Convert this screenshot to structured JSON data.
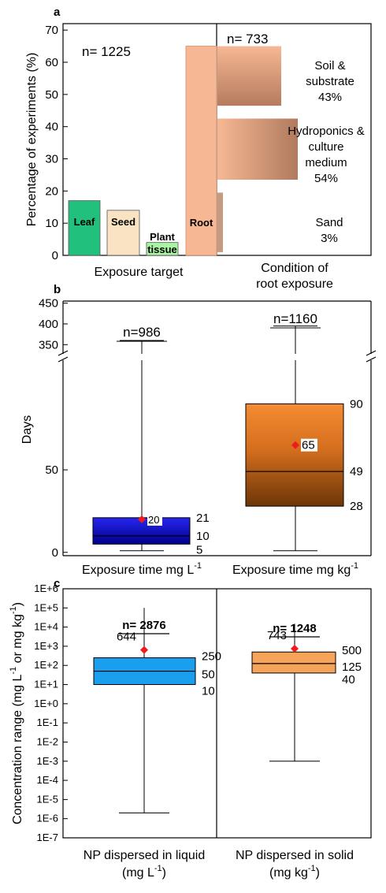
{
  "chart_data": [
    {
      "panel": "a",
      "type": "bar",
      "ylabel": "Percentage of experiments (%)",
      "ylim": [
        0,
        72
      ],
      "yticks": [
        0,
        10,
        20,
        30,
        40,
        50,
        60,
        70
      ],
      "left": {
        "n_label": "n= 1225",
        "xlabel": "Exposure target",
        "categories": [
          "Leaf",
          "Seed",
          "Plant tissue",
          "Root"
        ],
        "label_lines": [
          [
            "Leaf"
          ],
          [
            "Seed"
          ],
          [
            "Plant",
            "tissue"
          ],
          [
            "Root"
          ]
        ],
        "values": [
          17,
          14,
          4,
          65
        ],
        "colors": [
          "#21c07c",
          "#fae3c2",
          "#aaf5a3",
          "#f6b894"
        ]
      },
      "right": {
        "n_label": "n= 733",
        "xlabel_lines": [
          "Condition of",
          "root exposure"
        ],
        "categories": [
          "Soil & substrate",
          "Hydroponics & culture medium",
          "Sand"
        ],
        "percent_labels": [
          "43%",
          "54%",
          "3%"
        ],
        "label_lines": [
          [
            "Soil &",
            "substrate",
            "43%"
          ],
          [
            "Hydroponics &",
            "culture",
            "medium",
            "54%"
          ],
          [
            "Sand",
            "3%"
          ]
        ],
        "spans": [
          [
            46.5,
            65
          ],
          [
            23.5,
            42.5
          ],
          [
            1,
            19.5
          ]
        ],
        "percent_values": [
          43,
          54,
          3
        ]
      }
    },
    {
      "panel": "b",
      "type": "box",
      "ylabel": "Days",
      "lower_ylim": [
        -2,
        115
      ],
      "lower_yticks": [
        0,
        50
      ],
      "upper_ylim": [
        322,
        455
      ],
      "upper_yticks": [
        350,
        400,
        450
      ],
      "categories": [
        "Exposure time  mg L",
        "Exposure time  mg kg"
      ],
      "unit_superscript": "-1",
      "boxes": [
        {
          "n_label": "n=986",
          "min": 1,
          "q1": 5,
          "median": 10,
          "q3": 21,
          "max": 360,
          "mean": 20,
          "labels": {
            "q3": "21",
            "median": "10",
            "q1": "5",
            "mean": "20"
          },
          "color_top": "#2626f0",
          "color_bottom": "#00008a"
        },
        {
          "n_label": "n=1160",
          "min": 1,
          "q1": 28,
          "median": 49,
          "q3": 90,
          "max": 395,
          "mean": 65,
          "labels": {
            "q3": "90",
            "median": "49",
            "q1": "28",
            "mean": "65"
          },
          "color_top": "#f48c32",
          "color_bottom": "#703a0a"
        }
      ],
      "mean_color": "#ee1c1c"
    },
    {
      "panel": "c",
      "type": "box",
      "scale": "log",
      "ylabel": "Concentration range (mg L  or mg kg )",
      "ylabel_parts": [
        "Concentration range (mg L",
        "-1",
        " or mg kg",
        "-1",
        ")"
      ],
      "ylim_exp": [
        -7,
        6
      ],
      "ytick_labels": [
        "1E-7",
        "1E-6",
        "1E-5",
        "1E-4",
        "1E-3",
        "1E-2",
        "1E-1",
        "1E+0",
        "1E+1",
        "1E+2",
        "1E+3",
        "1E+4",
        "1E+5",
        "1E+6"
      ],
      "categories": [
        [
          "NP dispersed in liquid",
          "(mg L",
          ")"
        ],
        [
          "NP dispersed in solid",
          "(mg kg",
          ")"
        ]
      ],
      "unit_superscript": "-1",
      "boxes": [
        {
          "n_label": "n= 2876",
          "min": 2e-06,
          "q1": 10,
          "median": 50,
          "q3": 250,
          "max": 100000,
          "mean": 644,
          "labels": {
            "q3": "250",
            "median": "50",
            "q1": "10",
            "mean": "644"
          },
          "color": "#1a9fef"
        },
        {
          "n_label": "n= 1248",
          "min": 0.001,
          "q1": 40,
          "median": 125,
          "q3": 500,
          "max": 15000,
          "mean": 743,
          "labels": {
            "q3": "500",
            "median": "125",
            "q1": "40",
            "mean": "743"
          },
          "color": "#f5a45a"
        }
      ],
      "mean_color": "#ee1c1c"
    }
  ],
  "panel_letters": [
    "a",
    "b",
    "c"
  ]
}
